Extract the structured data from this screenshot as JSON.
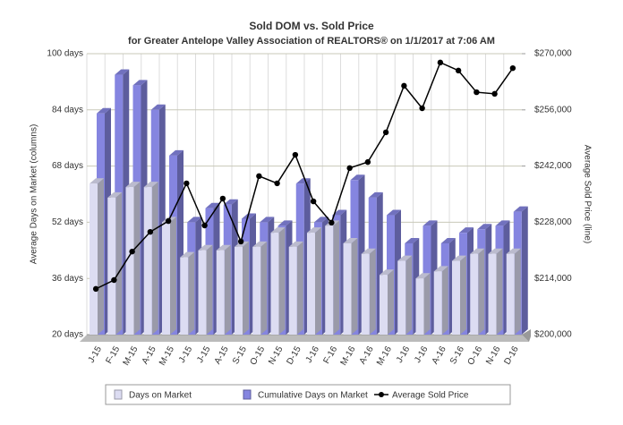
{
  "chart_data": {
    "type": "bar-line",
    "title": "Sold DOM vs. Sold Price",
    "subtitle": "for Greater Antelope Valley Association of REALTORS® on 1/1/2017 at 7:06 AM",
    "y_label": "Average Days on Market (columns)",
    "y2_label": "Average Sold Price (line)",
    "categories": [
      "J-15",
      "F-15",
      "M-15",
      "A-15",
      "M-15",
      "J-15",
      "J-15",
      "A-15",
      "S-15",
      "O-15",
      "N-15",
      "D-15",
      "J-16",
      "F-16",
      "M-16",
      "A-16",
      "M-16",
      "J-16",
      "J-16",
      "A-16",
      "S-16",
      "O-16",
      "N-16",
      "D-16"
    ],
    "series": [
      {
        "name": "Days on Market",
        "kind": "bar",
        "color": "#dcdcf2",
        "values": [
          63,
          59,
          62,
          62,
          52,
          42,
          44,
          44,
          45,
          45,
          49,
          45,
          49,
          51,
          46,
          43,
          37,
          41,
          36,
          38,
          41,
          43,
          43,
          43
        ]
      },
      {
        "name": "Cumulative Days on Market",
        "kind": "bar",
        "color": "#8585e0",
        "values": [
          83,
          94,
          91,
          84,
          71,
          52,
          56,
          57,
          53,
          52,
          51,
          63,
          52,
          54,
          64,
          59,
          54,
          46,
          51,
          46,
          49,
          50,
          51,
          55
        ]
      },
      {
        "name": "Average Sold Price",
        "kind": "line",
        "axis": "y2",
        "color": "#000000",
        "values": [
          211400,
          213600,
          220700,
          225600,
          228300,
          237700,
          227200,
          233900,
          223200,
          239500,
          237700,
          244800,
          233200,
          227900,
          241500,
          243000,
          250400,
          262000,
          256400,
          267800,
          265800,
          260400,
          260000,
          266400
        ]
      }
    ],
    "ylim": [
      20,
      100
    ],
    "yticks": [
      {
        "value": 20,
        "label": "20 days"
      },
      {
        "value": 36,
        "label": "36 days"
      },
      {
        "value": 52,
        "label": "52 days"
      },
      {
        "value": 68,
        "label": "68 days"
      },
      {
        "value": 84,
        "label": "84 days"
      },
      {
        "value": 100,
        "label": "100 days"
      }
    ],
    "y2lim": [
      200000,
      270000
    ],
    "y2ticks": [
      {
        "value": 200000,
        "label": "$200,000"
      },
      {
        "value": 214000,
        "label": "$214,000"
      },
      {
        "value": 228000,
        "label": "$228,000"
      },
      {
        "value": 242000,
        "label": "$242,000"
      },
      {
        "value": 256000,
        "label": "$256,000"
      },
      {
        "value": 270000,
        "label": "$270,000"
      }
    ],
    "grid": true
  }
}
